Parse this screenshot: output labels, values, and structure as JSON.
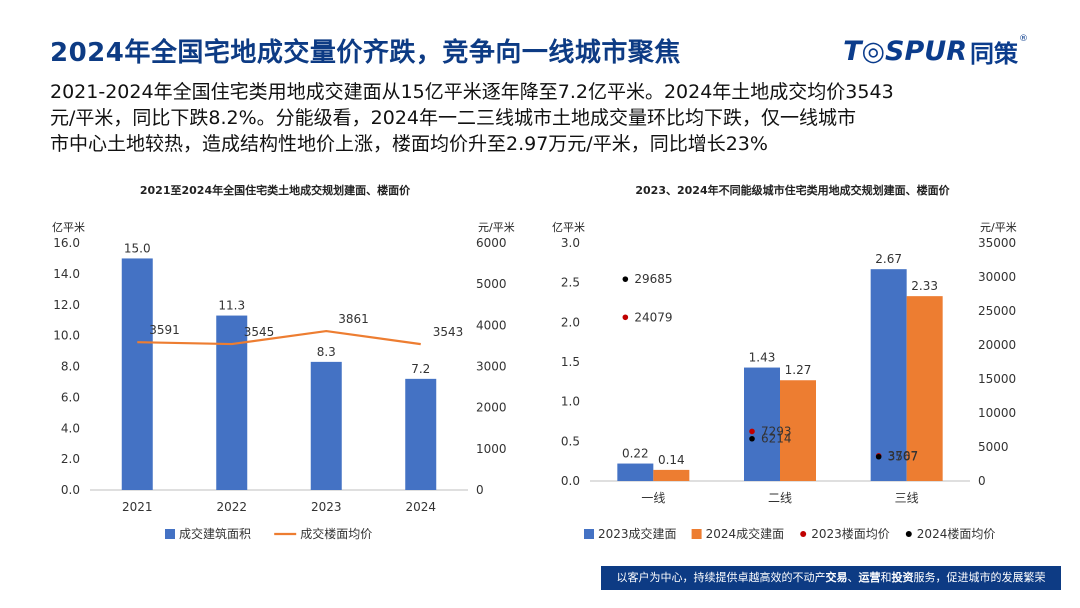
{
  "header": {
    "title": "2024年全国宅地成交量价齐跌，竞争向一线城市聚焦",
    "logo_en": "T◎SPUR",
    "logo_cn": "同策",
    "logo_reg": "®"
  },
  "summary": {
    "line1": "2021-2024年全国住宅类用地成交建面从15亿平米逐年降至7.2亿平米。2024年土地成交均价3543",
    "line2": "元/平米，同比下跌8.2%。分能级看，2024年一二三线城市土地成交量环比均下跌，仅一线城市",
    "line3": "市中心土地较热，造成结构性地价上涨，楼面均价升至2.97万元/平米，同比增长23%"
  },
  "footer": {
    "part1": "以客户为中心，持续提供卓越高效的不动产",
    "b1": "交易",
    "sep1": "、",
    "b2": "运营",
    "sep2": "和",
    "b3": "投资",
    "part2": "服务，促进城市的发展繁荣"
  },
  "chart_data": [
    {
      "type": "bar",
      "title": "2021至2024年全国住宅类土地成交规划建面、楼面价",
      "categories": [
        "2021",
        "2022",
        "2023",
        "2024"
      ],
      "ylabel": "亿平米",
      "y2label": "元/平米",
      "ylim": [
        0,
        16
      ],
      "yticks": [
        "0.0",
        "2.0",
        "4.0",
        "6.0",
        "8.0",
        "10.0",
        "12.0",
        "14.0",
        "16.0"
      ],
      "y2lim": [
        0,
        6000
      ],
      "y2ticks": [
        "0",
        "1000",
        "2000",
        "3000",
        "4000",
        "5000",
        "6000"
      ],
      "series": [
        {
          "name": "成交建筑面积",
          "type": "bar",
          "axis": "left",
          "color": "#4472c4",
          "values": [
            15.0,
            11.3,
            8.3,
            7.2
          ],
          "labels": [
            "15.0",
            "11.3",
            "8.3",
            "7.2"
          ]
        },
        {
          "name": "成交楼面均价",
          "type": "line",
          "axis": "right",
          "color": "#ed7d31",
          "values": [
            3591,
            3545,
            3861,
            3543
          ],
          "labels": [
            "3591",
            "3545",
            "3861",
            "3543"
          ]
        }
      ],
      "legend": "bottom",
      "grid": false
    },
    {
      "type": "bar",
      "title": "2023、2024年不同能级城市住宅类用地成交规划建面、楼面价",
      "categories": [
        "一线",
        "二线",
        "三线"
      ],
      "ylabel": "亿平米",
      "y2label": "元/平米",
      "ylim": [
        0,
        3.0
      ],
      "yticks": [
        "0.0",
        "0.5",
        "1.0",
        "1.5",
        "2.0",
        "2.5",
        "3.0"
      ],
      "y2lim": [
        0,
        35000
      ],
      "y2ticks": [
        "0",
        "5000",
        "10000",
        "15000",
        "20000",
        "25000",
        "30000",
        "35000"
      ],
      "series": [
        {
          "name": "2023成交建面",
          "type": "bar",
          "axis": "left",
          "color": "#4472c4",
          "values": [
            0.22,
            1.43,
            2.67
          ],
          "labels": [
            "0.22",
            "1.43",
            "2.67"
          ]
        },
        {
          "name": "2024成交建面",
          "type": "bar",
          "axis": "left",
          "color": "#ed7d31",
          "values": [
            0.14,
            1.27,
            2.33
          ],
          "labels": [
            "0.14",
            "1.27",
            "2.33"
          ]
        },
        {
          "name": "2023楼面均价",
          "type": "scatter",
          "axis": "right",
          "color": "#c00000",
          "values": [
            24079,
            7293,
            3707
          ],
          "labels": [
            "24079",
            "7293",
            "3707"
          ]
        },
        {
          "name": "2024楼面均价",
          "type": "scatter",
          "axis": "right",
          "color": "#000000",
          "values": [
            29685,
            6214,
            3567
          ],
          "labels": [
            "29685",
            "6214",
            "3567"
          ]
        }
      ],
      "legend": "bottom",
      "grid": false
    }
  ]
}
